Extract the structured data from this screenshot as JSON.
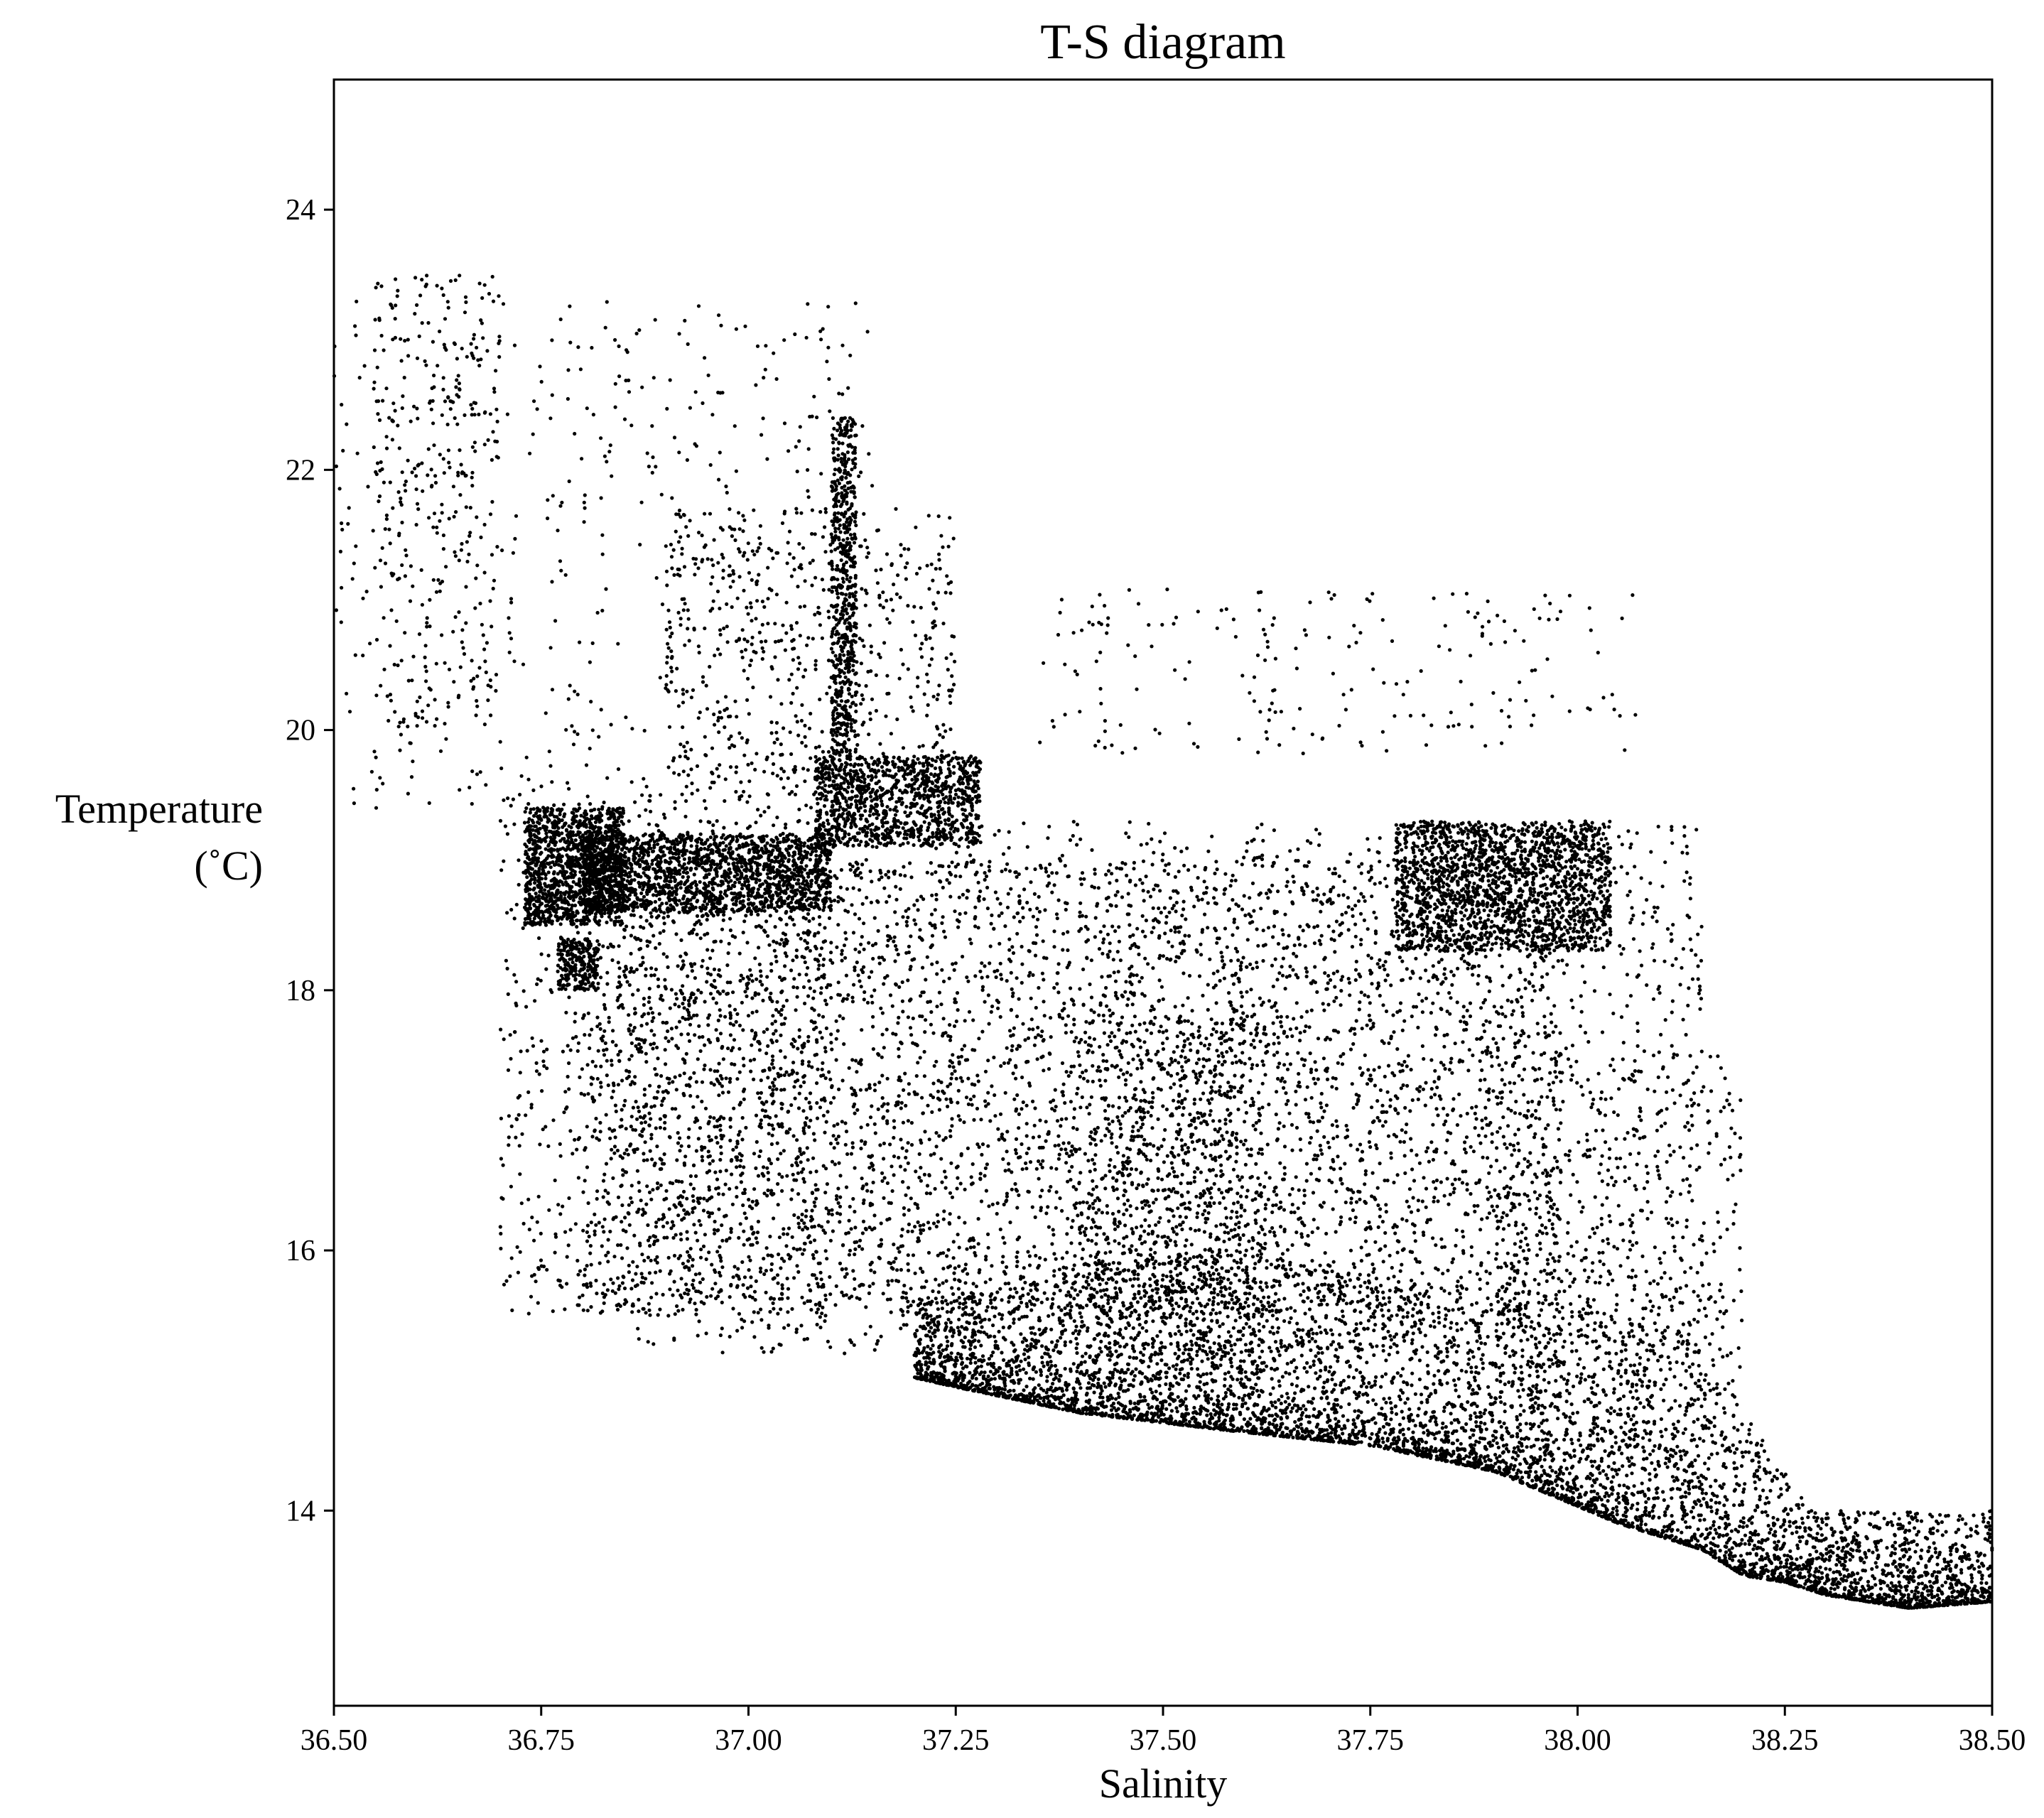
{
  "chart_data": {
    "type": "scatter",
    "title": "T-S diagram",
    "xlabel": "Salinity",
    "ylabel_lines": [
      "Temperature",
      "(˚C)"
    ],
    "xlim": [
      36.5,
      38.5
    ],
    "ylim": [
      12.5,
      25.0
    ],
    "xticks": [
      36.5,
      36.75,
      37.0,
      37.25,
      37.5,
      37.75,
      38.0,
      38.25,
      38.5
    ],
    "xtick_labels": [
      "36.50",
      "36.75",
      "37.00",
      "37.25",
      "37.50",
      "37.75",
      "38.00",
      "38.25",
      "38.50"
    ],
    "yticks": [
      14,
      16,
      18,
      20,
      22,
      24
    ],
    "ytick_labels": [
      "14",
      "16",
      "18",
      "20",
      "22",
      "24"
    ],
    "marker_color": "#000000",
    "grid": false,
    "legend": false,
    "point_groups": [
      {
        "seed": 11,
        "n": 3200,
        "x": [
          36.8,
          37.98
        ],
        "y": [
          15.5,
          19.0
        ]
      },
      {
        "seed": 12,
        "n": 2600,
        "x": [
          36.85,
          38.15
        ],
        "y": [
          15.2,
          19.3
        ]
      },
      {
        "seed": 13,
        "n": 900,
        "x": [
          36.7,
          37.1
        ],
        "y": [
          15.5,
          19.5
        ]
      },
      {
        "seed": 14,
        "n": 500,
        "x": [
          37.9,
          38.2
        ],
        "y": [
          14.3,
          17.5
        ]
      },
      {
        "seed": 15,
        "n": 1300,
        "x": [
          36.73,
          36.85
        ],
        "y": [
          18.5,
          19.4
        ]
      },
      {
        "seed": 16,
        "n": 250,
        "x": [
          36.77,
          36.82
        ],
        "y": [
          18.0,
          18.4
        ]
      },
      {
        "seed": 17,
        "n": 1700,
        "x": [
          36.8,
          37.1
        ],
        "y": [
          18.6,
          19.2
        ]
      },
      {
        "seed": 18,
        "n": 1100,
        "x": [
          37.08,
          37.28
        ],
        "y": [
          19.1,
          19.8
        ]
      },
      {
        "seed": 19,
        "n": 1800,
        "x": [
          37.78,
          38.04
        ],
        "y": [
          18.3,
          19.3
        ]
      },
      {
        "seed": 20,
        "n": 700,
        "x": [
          37.4,
          37.62
        ],
        "y": [
          15.0,
          17.8
        ]
      },
      {
        "seed": 21,
        "n": 600,
        "x": [
          37.1,
          37.13
        ],
        "y": [
          19.8,
          22.4
        ]
      },
      {
        "seed": 22,
        "n": 600,
        "x": [
          36.9,
          37.25
        ],
        "y": [
          19.5,
          21.7
        ]
      },
      {
        "seed": 23,
        "n": 500,
        "x": [
          36.5,
          37.15
        ],
        "y": [
          19.4,
          23.3
        ]
      },
      {
        "seed": 24,
        "n": 200,
        "x": [
          37.35,
          38.07
        ],
        "y": [
          19.8,
          21.1
        ]
      },
      {
        "seed": 25,
        "n": 300,
        "x": [
          36.55,
          36.7
        ],
        "y": [
          20.0,
          23.5
        ]
      }
    ],
    "lower_boundary": {
      "x": [
        37.18,
        37.25,
        37.4,
        37.6,
        37.75,
        37.9,
        38.05,
        38.15,
        38.2,
        38.25,
        38.3,
        38.4,
        38.5
      ],
      "y": [
        15.05,
        14.95,
        14.75,
        14.6,
        14.5,
        14.3,
        13.9,
        13.7,
        13.5,
        13.45,
        13.35,
        13.25,
        13.3
      ]
    },
    "upper_cloud_edge": {
      "x": [
        37.18,
        37.4,
        37.6,
        37.75,
        37.9,
        38.0,
        38.12,
        38.18,
        38.22,
        38.28
      ],
      "y": [
        15.6,
        15.9,
        16.0,
        15.8,
        15.7,
        15.6,
        15.4,
        15.0,
        14.6,
        14.0
      ]
    }
  }
}
